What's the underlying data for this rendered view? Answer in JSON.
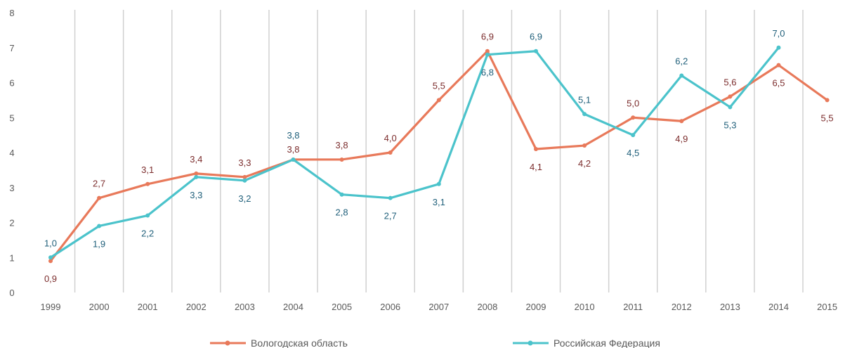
{
  "chart_data": {
    "type": "line",
    "title": "",
    "xlabel": "",
    "ylabel": "",
    "categories": [
      "1999",
      "2000",
      "2001",
      "2002",
      "2003",
      "2004",
      "2005",
      "2006",
      "2007",
      "2008",
      "2009",
      "2010",
      "2011",
      "2012",
      "2013",
      "2014",
      "2015"
    ],
    "ylim": [
      0,
      8
    ],
    "yticks": [
      "0",
      "1",
      "2",
      "3",
      "4",
      "5",
      "6",
      "7",
      "8"
    ],
    "grid": "vertical",
    "legend_position": "bottom",
    "series": [
      {
        "name": "Вологодская область",
        "color": "#E8795A",
        "label_color": "#7B2C2C",
        "values": [
          0.9,
          2.7,
          3.1,
          3.4,
          3.3,
          3.8,
          3.8,
          4.0,
          5.5,
          6.9,
          4.1,
          4.2,
          5.0,
          4.9,
          5.6,
          6.5,
          5.5
        ],
        "labels": [
          "0,9",
          "2,7",
          "3,1",
          "3,4",
          "3,3",
          "3,8",
          "3,8",
          "4,0",
          "5,5",
          "6,9",
          "4,1",
          "4,2",
          "5,0",
          "4,9",
          "5,6",
          "6,5",
          "5,5"
        ]
      },
      {
        "name": "Российская Федерация",
        "color": "#4BC3CB",
        "label_color": "#1F5F7A",
        "values": [
          1.0,
          1.9,
          2.2,
          3.3,
          3.2,
          3.8,
          2.8,
          2.7,
          3.1,
          6.8,
          6.9,
          5.1,
          4.5,
          6.2,
          5.3,
          7.0,
          null
        ],
        "labels": [
          "1,0",
          "1,9",
          "2,2",
          "3,3",
          "3,2",
          "3,8",
          "2,8",
          "2,7",
          "3,1",
          "6,8",
          "6,9",
          "5,1",
          "4,5",
          "6,2",
          "5,3",
          "7,0",
          ""
        ]
      }
    ]
  }
}
